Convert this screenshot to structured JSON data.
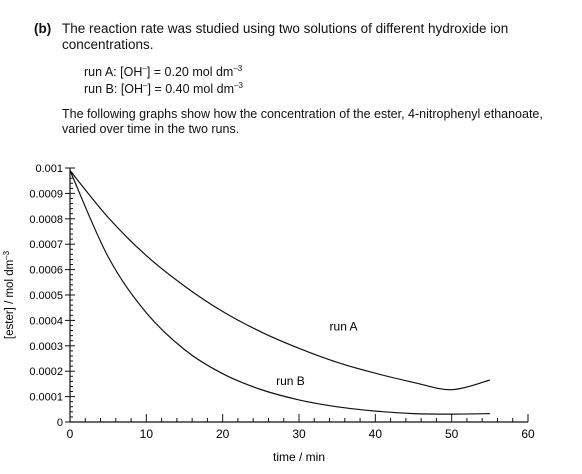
{
  "question": {
    "part_label": "(b)",
    "intro": "The reaction rate was studied using two solutions of different hydroxide ion concentrations.",
    "run_a_prefix": "run A: [OH",
    "run_a_suffix": "] = 0.20 mol dm",
    "run_b_prefix": "run B: [OH",
    "run_b_suffix": "] = 0.40 mol dm",
    "charge": "–",
    "exponent": "–3",
    "description": "The following graphs show how the concentration of the ester, 4-nitrophenyl ethanoate, varied over time in the two runs."
  },
  "chart_data": {
    "type": "line",
    "title": "",
    "xlabel": "time / min",
    "ylabel": "[ester] / mol dm",
    "ylabel_exponent": "–3",
    "xlim": [
      0,
      60
    ],
    "ylim": [
      0,
      0.001
    ],
    "x_ticks": [
      0,
      10,
      20,
      30,
      40,
      50,
      60
    ],
    "x_tick_labels": [
      "0",
      "10",
      "20",
      "30",
      "40",
      "50",
      "60"
    ],
    "y_ticks": [
      0,
      0.0001,
      0.0002,
      0.0003,
      0.0004,
      0.0005,
      0.0006,
      0.0007,
      0.0008,
      0.0009,
      0.001
    ],
    "y_tick_labels": [
      "0",
      "0.0001",
      "0.0002",
      "0.0003",
      "0.0004",
      "0.0005",
      "0.0006",
      "0.0007",
      "0.0008",
      "0.0009",
      "0.001"
    ],
    "grid": false,
    "series": [
      {
        "name": "run A",
        "x": [
          0,
          5,
          10,
          15,
          20,
          25,
          30,
          35,
          40,
          45,
          50,
          55
        ],
        "values": [
          0.00099,
          0.000805,
          0.000655,
          0.000535,
          0.000435,
          0.000355,
          0.00029,
          0.000235,
          0.000192,
          0.000156,
          0.000127,
          0.000165
        ]
      },
      {
        "name": "run B",
        "x": [
          0,
          5,
          10,
          15,
          20,
          25,
          30,
          35,
          40,
          45,
          50,
          55
        ],
        "values": [
          0.00099,
          0.00065,
          0.00043,
          0.000285,
          0.00019,
          0.000128,
          8.7e-05,
          6e-05,
          4.3e-05,
          3.3e-05,
          3.1e-05,
          3.3e-05
        ]
      }
    ],
    "annotations": [
      {
        "text": "run A",
        "x": 34,
        "y": 0.00036
      },
      {
        "text": "run B",
        "x": 27,
        "y": 0.000145
      }
    ]
  }
}
